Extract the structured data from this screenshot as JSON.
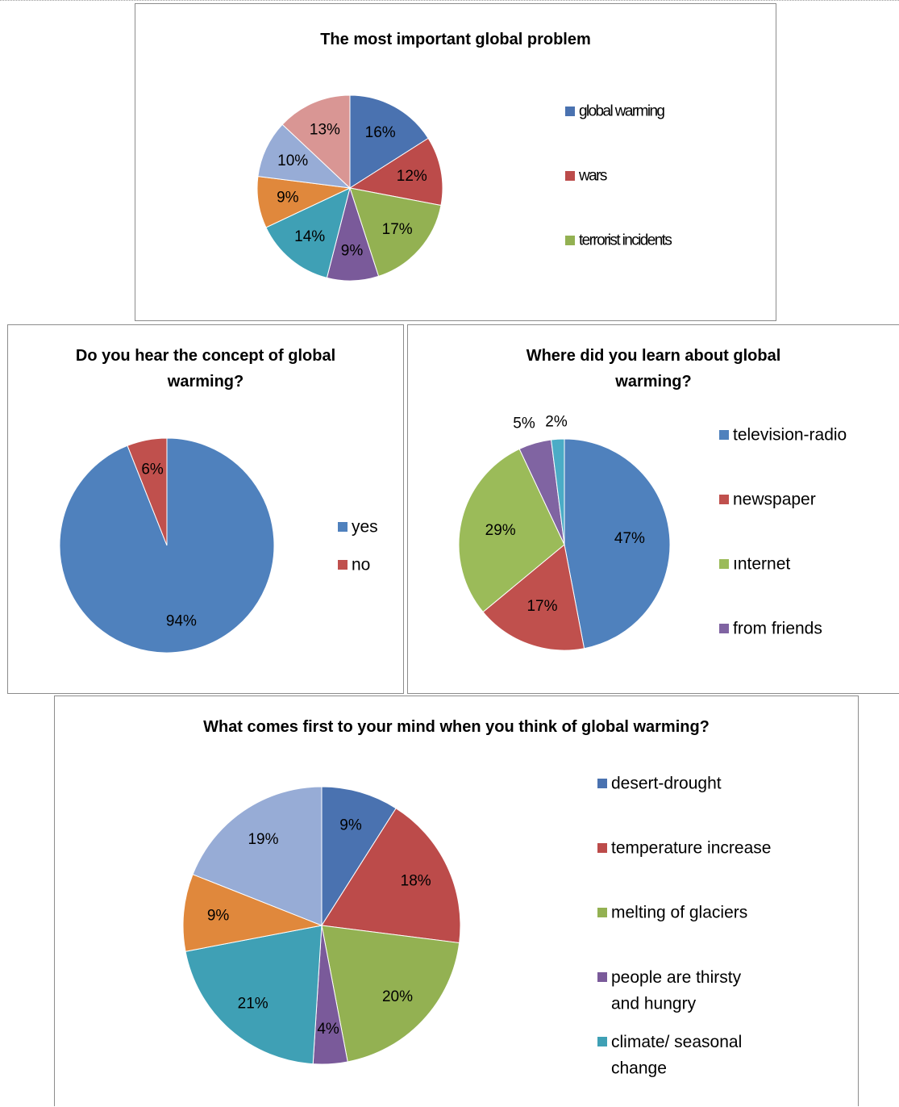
{
  "chart_data": [
    {
      "type": "pie",
      "title": "The most important global problem",
      "categories": [
        "global warming",
        "wars",
        "terrorist incidents",
        "",
        "",
        "",
        "",
        ""
      ],
      "values": [
        16,
        12,
        17,
        9,
        14,
        9,
        10,
        13
      ],
      "labels": [
        "16%",
        "12%",
        "17%",
        "9%",
        "14%",
        "9%",
        "10%",
        "13%"
      ],
      "colors": [
        "#4a72b0",
        "#bc4b4a",
        "#93b152",
        "#7a5a9a",
        "#3fa0b5",
        "#e0883c",
        "#97acd6",
        "#d99694"
      ],
      "legend": {
        "placement": "right",
        "entries": [
          "global warming",
          "wars",
          "terrorist incidents"
        ]
      }
    },
    {
      "type": "pie",
      "title": "Do you hear the concept of global warming?",
      "categories": [
        "yes",
        "no"
      ],
      "values": [
        94,
        6
      ],
      "labels": [
        "94%",
        "6%"
      ],
      "colors": [
        "#4f81bd",
        "#c0504d"
      ],
      "legend": {
        "placement": "right",
        "entries": [
          "yes",
          "no"
        ]
      }
    },
    {
      "type": "pie",
      "title": "Where did you learn about global warming?",
      "categories": [
        "television-radio",
        "newspaper",
        "ınternet",
        "from friends",
        ""
      ],
      "values": [
        47,
        17,
        29,
        5,
        2
      ],
      "labels": [
        "47%",
        "17%",
        "29%",
        "5%",
        "2%"
      ],
      "colors": [
        "#4f81bd",
        "#c0504d",
        "#9bbb59",
        "#8064a2",
        "#4bacc6"
      ],
      "legend": {
        "placement": "right",
        "entries": [
          "television-radio",
          "newspaper",
          "ınternet",
          "from friends"
        ]
      }
    },
    {
      "type": "pie",
      "title": "What comes first to your mind when you think of global warming?",
      "categories": [
        "desert-drought",
        "temperature increase",
        "melting of glaciers",
        "people are thirsty and hungry",
        "climate/ seasonal change",
        "",
        ""
      ],
      "values": [
        9,
        18,
        20,
        4,
        21,
        9,
        19
      ],
      "labels": [
        "9%",
        "18%",
        "20%",
        "4%",
        "21%",
        "9%",
        "19%"
      ],
      "colors": [
        "#4a72b0",
        "#bc4b4a",
        "#93b152",
        "#7a5a9a",
        "#3fa0b5",
        "#e0883c",
        "#97acd6"
      ],
      "legend": {
        "placement": "right",
        "entries": [
          "desert-drought",
          "temperature increase",
          "melting of glaciers",
          "people are thirsty and hungry",
          "climate/ seasonal change"
        ]
      }
    }
  ]
}
